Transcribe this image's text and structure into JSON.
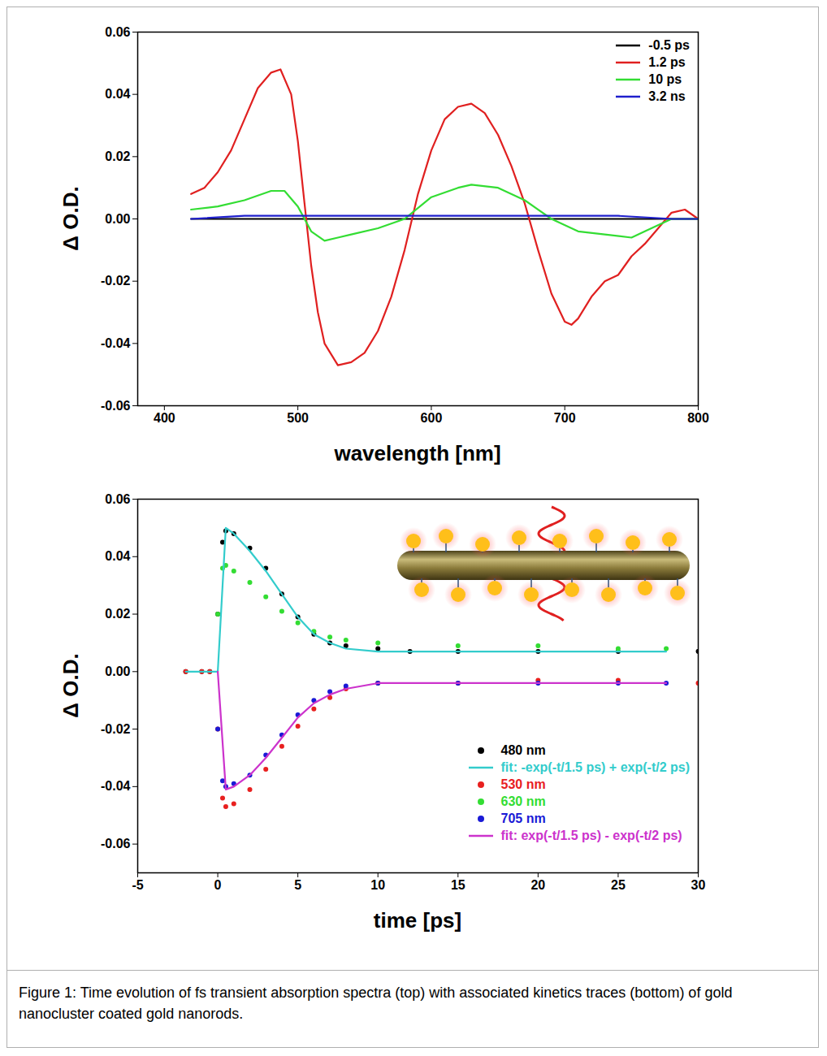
{
  "chart_data": [
    {
      "type": "line",
      "x_label": "wavelength [nm]",
      "y_label": "Δ O.D.",
      "xlim": [
        380,
        800
      ],
      "xticks": [
        400,
        500,
        600,
        700,
        800
      ],
      "ylim": [
        -0.06,
        0.06
      ],
      "yticks": [
        -0.06,
        -0.04,
        -0.02,
        {
          "value": 0,
          "label": "0.00"
        },
        0.02,
        0.04,
        0.06
      ],
      "legend": "top-right",
      "series": [
        {
          "name": "-0.5 ps",
          "color": "#000000",
          "x": [
            420,
            460,
            500,
            540,
            580,
            620,
            660,
            700,
            740,
            780,
            800
          ],
          "values": [
            0,
            0,
            0,
            0,
            0,
            0,
            0,
            0,
            0,
            0,
            0
          ]
        },
        {
          "name": "1.2 ps",
          "color": "#e02020",
          "x": [
            420,
            430,
            440,
            450,
            460,
            470,
            480,
            487,
            495,
            500,
            505,
            510,
            515,
            520,
            530,
            540,
            550,
            560,
            570,
            580,
            590,
            600,
            610,
            620,
            630,
            640,
            650,
            660,
            670,
            680,
            690,
            700,
            705,
            710,
            720,
            730,
            740,
            750,
            760,
            770,
            780,
            790,
            800
          ],
          "values": [
            0.008,
            0.01,
            0.015,
            0.022,
            0.032,
            0.042,
            0.047,
            0.048,
            0.04,
            0.025,
            0.005,
            -0.015,
            -0.03,
            -0.04,
            -0.047,
            -0.046,
            -0.043,
            -0.036,
            -0.025,
            -0.01,
            0.008,
            0.022,
            0.032,
            0.036,
            0.037,
            0.034,
            0.027,
            0.017,
            0.005,
            -0.01,
            -0.024,
            -0.033,
            -0.034,
            -0.032,
            -0.025,
            -0.02,
            -0.018,
            -0.012,
            -0.008,
            -0.003,
            0.002,
            0.003,
            0
          ]
        },
        {
          "name": "10 ps",
          "color": "#33dd33",
          "x": [
            420,
            440,
            460,
            480,
            490,
            500,
            510,
            520,
            530,
            540,
            560,
            580,
            600,
            620,
            630,
            650,
            670,
            690,
            710,
            730,
            750,
            760,
            780,
            800
          ],
          "values": [
            0.003,
            0.004,
            0.006,
            0.009,
            0.009,
            0.004,
            -0.004,
            -0.007,
            -0.006,
            -0.005,
            -0.003,
            0,
            0.007,
            0.01,
            0.011,
            0.01,
            0.006,
            0,
            -0.004,
            -0.005,
            -0.006,
            -0.004,
            0,
            0
          ]
        },
        {
          "name": "3.2 ns",
          "color": "#1f1fcc",
          "x": [
            420,
            460,
            500,
            540,
            580,
            620,
            660,
            700,
            740,
            780,
            800
          ],
          "values": [
            0,
            0.001,
            0.001,
            0.001,
            0.001,
            0.001,
            0.001,
            0.001,
            0.001,
            0,
            0
          ]
        }
      ]
    },
    {
      "type": "scatter",
      "x_label": "time [ps]",
      "y_label": "Δ O.D.",
      "xlim": [
        -5,
        30
      ],
      "xticks": [
        -5,
        0,
        5,
        10,
        15,
        20,
        25,
        30
      ],
      "ylim": [
        -0.07,
        0.06
      ],
      "yticks": [
        -0.06,
        -0.04,
        -0.02,
        {
          "value": 0,
          "label": "0.00"
        },
        0.02,
        0.04,
        0.06
      ],
      "legend": "bottom-right",
      "series": [
        {
          "name": "480 nm",
          "color": "#000000",
          "type": "scatter",
          "x": [
            -2,
            -1,
            -0.5,
            0,
            0.3,
            0.5,
            1,
            2,
            3,
            4,
            5,
            6,
            7,
            8,
            10,
            12,
            15,
            20,
            25,
            30
          ],
          "values": [
            0,
            0,
            0,
            0.02,
            0.045,
            0.049,
            0.048,
            0.043,
            0.036,
            0.027,
            0.019,
            0.013,
            0.01,
            0.009,
            0.008,
            0.007,
            0.007,
            0.007,
            0.007,
            0.007
          ]
        },
        {
          "name": "fit: -exp(-t/1.5 ps) + exp(-t/2 ps)",
          "color": "#33cccc",
          "type": "line",
          "x": [
            -2,
            0,
            0.5,
            1,
            2,
            3,
            4,
            5,
            6,
            7,
            8,
            10,
            15,
            20,
            25,
            28
          ],
          "values": [
            0,
            0,
            0.05,
            0.048,
            0.042,
            0.035,
            0.027,
            0.019,
            0.013,
            0.01,
            0.008,
            0.007,
            0.007,
            0.007,
            0.007,
            0.007
          ]
        },
        {
          "name": "530 nm",
          "color": "#e8201f",
          "type": "scatter",
          "x": [
            -2,
            -1,
            -0.5,
            0,
            0.3,
            0.5,
            1,
            2,
            3,
            4,
            5,
            6,
            7,
            8,
            10,
            15,
            20,
            25,
            30
          ],
          "values": [
            0,
            0,
            0,
            -0.02,
            -0.044,
            -0.047,
            -0.046,
            -0.041,
            -0.034,
            -0.026,
            -0.019,
            -0.013,
            -0.009,
            -0.006,
            -0.004,
            -0.004,
            -0.003,
            -0.003,
            -0.004
          ]
        },
        {
          "name": "630 nm",
          "color": "#33dd33",
          "type": "scatter",
          "x": [
            0,
            0.3,
            0.5,
            1,
            2,
            3,
            4,
            5,
            6,
            7,
            8,
            10,
            15,
            20,
            25,
            28
          ],
          "values": [
            0.02,
            0.036,
            0.037,
            0.035,
            0.031,
            0.026,
            0.021,
            0.017,
            0.014,
            0.012,
            0.011,
            0.01,
            0.009,
            0.009,
            0.008,
            0.008
          ]
        },
        {
          "name": "705 nm",
          "color": "#1a1ad6",
          "type": "scatter",
          "x": [
            0,
            0.3,
            0.5,
            1,
            2,
            3,
            4,
            5,
            6,
            7,
            8,
            10,
            15,
            20,
            25,
            28
          ],
          "values": [
            -0.02,
            -0.038,
            -0.04,
            -0.039,
            -0.036,
            -0.029,
            -0.022,
            -0.015,
            -0.01,
            -0.007,
            -0.005,
            -0.004,
            -0.004,
            -0.004,
            -0.004,
            -0.004
          ]
        },
        {
          "name": "fit: exp(-t/1.5 ps) - exp(-t/2 ps)",
          "color": "#cc33cc",
          "type": "line",
          "x": [
            0,
            0.5,
            1,
            2,
            3,
            4,
            5,
            6,
            7,
            8,
            10,
            15,
            20,
            25,
            28
          ],
          "values": [
            0,
            -0.041,
            -0.04,
            -0.036,
            -0.03,
            -0.023,
            -0.016,
            -0.011,
            -0.008,
            -0.006,
            -0.004,
            -0.004,
            -0.004,
            -0.004,
            -0.004
          ]
        }
      ]
    }
  ],
  "caption": "Figure 1: Time evolution of fs transient absorption spectra (top) with associated kinetics traces (bottom) of gold nanocluster coated gold nanorods."
}
